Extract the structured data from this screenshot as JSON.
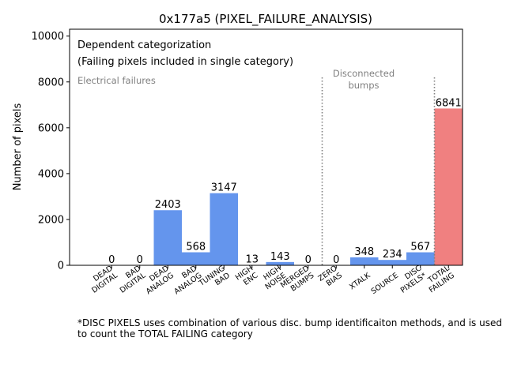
{
  "chart_data": {
    "type": "bar",
    "title": "0x177a5 (PIXEL_FAILURE_ANALYSIS)",
    "xlabel": "",
    "ylabel": "Number of pixels",
    "ylim": [
      0,
      10300
    ],
    "yticks": [
      0,
      2000,
      4000,
      6000,
      8000,
      10000
    ],
    "categories": [
      "DEAD\nDIGITAL",
      "BAD\nDIGITAL",
      "DEAD\nANALOG",
      "BAD\nANALOG",
      "TUNING\nBAD",
      "HIGH\nENC",
      "HIGH\nNOISE",
      "MERGED\nBUMPS",
      "ZERO\nBIAS",
      "XTALK",
      "SOURCE",
      "DISC\nPIXELS*",
      "TOTAL\nFAILING"
    ],
    "values": [
      0,
      0,
      2403,
      568,
      3147,
      13,
      143,
      0,
      0,
      348,
      234,
      567,
      6841
    ],
    "bar_colors": [
      "#6495ed",
      "#6495ed",
      "#6495ed",
      "#6495ed",
      "#6495ed",
      "#6495ed",
      "#6495ed",
      "#6495ed",
      "#6495ed",
      "#6495ed",
      "#6495ed",
      "#6495ed",
      "#f08080"
    ],
    "grid": false,
    "annotations": {
      "line1": "Dependent categorization",
      "line2": "(Failing pixels included in single category)",
      "electrical": "Electrical failures",
      "disconnected_line1": "Disconnected",
      "disconnected_line2": "bumps"
    },
    "annotation_color": "#808080",
    "separator_after_index": [
      7,
      11
    ],
    "separator_top_value": 8200
  },
  "footnote": "*DISC PIXELS uses combination of various disc. bump identificaiton methods, and is used to count the TOTAL FAILING category"
}
